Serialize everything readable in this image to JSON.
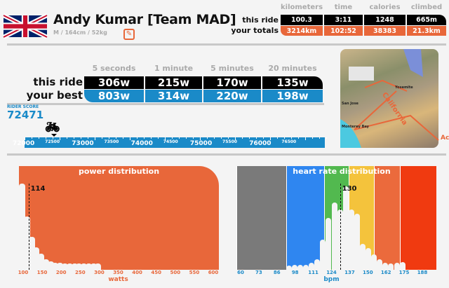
{
  "profile": {
    "name": "Andy Kumar [Team MAD]",
    "details": "M / 164cm / 52kg",
    "flag": "united-kingdom"
  },
  "stats": {
    "headers": [
      "kilometers",
      "time",
      "calories",
      "climbed"
    ],
    "this_ride_label": "this ride",
    "this_ride": [
      "100.3",
      "3:11",
      "1248",
      "665m"
    ],
    "totals_label": "your totals",
    "totals": [
      "3214km",
      "102:52",
      "38383",
      "21.3km"
    ]
  },
  "power": {
    "headers": [
      "5 seconds",
      "1 minute",
      "5 minutes",
      "20 minutes"
    ],
    "this_ride_label": "this ride",
    "this_ride": [
      "306w",
      "215w",
      "170w",
      "135w"
    ],
    "best_label": "your best",
    "best": [
      "803w",
      "314w",
      "220w",
      "198w"
    ]
  },
  "rider_score": {
    "label": "RIDER SCORE",
    "value": "72471",
    "scale_major": [
      "72000",
      "73000",
      "74000",
      "75000",
      "76000"
    ],
    "scale_minor": [
      "72500",
      "73500",
      "74500",
      "75500",
      "76500"
    ]
  },
  "map": {
    "labels": [
      "California",
      "Yosemite",
      "San Jose",
      "Monterey Bay"
    ],
    "side_text": "Ac"
  },
  "colors": {
    "orange": "#e8673a",
    "blue": "#1a8ac8",
    "black": "#000000"
  },
  "chart_data": [
    {
      "type": "bar",
      "title": "power distribution",
      "xlabel": "watts",
      "xlim": [
        100,
        600
      ],
      "xticks": [
        "100",
        "150",
        "200",
        "250",
        "300",
        "350",
        "400",
        "450",
        "500",
        "550",
        "600"
      ],
      "bin_width": 12.5,
      "x": [
        100,
        112.5,
        125,
        137.5,
        150,
        162.5,
        175,
        187.5,
        200,
        212.5,
        225,
        237.5,
        250,
        262.5,
        275,
        287.5,
        300
      ],
      "values": [
        100,
        62,
        38,
        26,
        19,
        12,
        10,
        8,
        8,
        7,
        7,
        7,
        7,
        7,
        7,
        7,
        7
      ],
      "marker": {
        "value": 114,
        "label": "114"
      }
    },
    {
      "type": "bar",
      "title": "heart rate distribution",
      "xlabel": "bpm",
      "xlim": [
        60,
        188
      ],
      "xticks": [
        "60",
        "73",
        "86",
        "98",
        "111",
        "124",
        "137",
        "150",
        "162",
        "175",
        "188"
      ],
      "zones": [
        {
          "from": 60,
          "to": 92,
          "color": "#7a7a7a"
        },
        {
          "from": 92,
          "to": 119,
          "color": "#2f86f0"
        },
        {
          "from": 119,
          "to": 136,
          "color": "#52b94f"
        },
        {
          "from": 136,
          "to": 154,
          "color": "#f4c33c"
        },
        {
          "from": 154,
          "to": 172,
          "color": "#eb6a3c"
        },
        {
          "from": 172,
          "to": 188,
          "color": "#f03a10"
        }
      ],
      "x": [
        92,
        96,
        100,
        104,
        108,
        112,
        116,
        120,
        124,
        128,
        132,
        136,
        140,
        144,
        148,
        152,
        156,
        160,
        164,
        168,
        172
      ],
      "values": [
        5,
        6,
        6,
        6,
        8,
        12,
        35,
        60,
        78,
        70,
        97,
        70,
        65,
        30,
        25,
        18,
        12,
        8,
        7,
        8,
        9
      ],
      "marker": {
        "value": 130,
        "label": "130"
      }
    }
  ]
}
